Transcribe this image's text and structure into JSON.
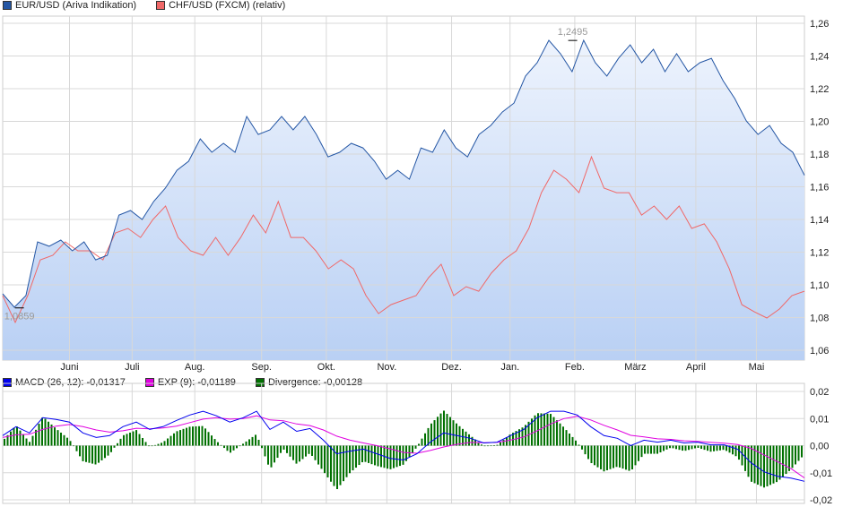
{
  "chart_data": [
    {
      "type": "line",
      "title": "",
      "legend_placement": "top-left",
      "legend": [
        {
          "label": "EUR/USD (Ariva Indikation)",
          "color": "#2456a4"
        },
        {
          "label": "CHF/USD (FXCM) (relativ)",
          "color": "#f06868"
        }
      ],
      "ylim": [
        1.055,
        1.265
      ],
      "y_ticks": [
        1.06,
        1.08,
        1.1,
        1.12,
        1.14,
        1.16,
        1.18,
        1.2,
        1.22,
        1.24,
        1.26
      ],
      "y_tick_labels": [
        "1,06",
        "1,08",
        "1,10",
        "1,12",
        "1,14",
        "1,16",
        "1,18",
        "1,20",
        "1,22",
        "1,24",
        "1,26"
      ],
      "x_span_days": 384,
      "x_ticks": [
        {
          "label": "Juni",
          "day": 32
        },
        {
          "label": "Juli",
          "day": 62
        },
        {
          "label": "Aug.",
          "day": 92
        },
        {
          "label": "Sep.",
          "day": 124
        },
        {
          "label": "Okt.",
          "day": 155
        },
        {
          "label": "Nov.",
          "day": 184
        },
        {
          "label": "Dez.",
          "day": 215
        },
        {
          "label": "Jan.",
          "day": 243
        },
        {
          "label": "Feb.",
          "day": 274
        },
        {
          "label": "März",
          "day": 303
        },
        {
          "label": "April",
          "day": 332
        },
        {
          "label": "Mai",
          "day": 361
        }
      ],
      "annotations": [
        {
          "label": "1,2495",
          "value": 1.2495,
          "day": 273
        },
        {
          "label": "1,0859",
          "value": 1.0859,
          "day": 8
        }
      ],
      "series": [
        {
          "name": "EUR/USD (Ariva Indikation)",
          "values": [
            1.0945,
            1.0863,
            1.0934,
            1.1263,
            1.1236,
            1.1274,
            1.1208,
            1.1263,
            1.1153,
            1.1181,
            1.1427,
            1.1455,
            1.14,
            1.151,
            1.1592,
            1.1701,
            1.1756,
            1.1893,
            1.1811,
            1.1866,
            1.1811,
            1.203,
            1.192,
            1.1948,
            1.203,
            1.1948,
            1.203,
            1.192,
            1.1783,
            1.1811,
            1.1866,
            1.1838,
            1.1756,
            1.1646,
            1.1701,
            1.1646,
            1.1838,
            1.1811,
            1.1948,
            1.1838,
            1.1783,
            1.192,
            1.1975,
            1.2057,
            1.2112,
            1.2277,
            1.2359,
            1.2496,
            1.2414,
            1.2304,
            1.2496,
            1.2359,
            1.2277,
            1.2386,
            1.2468,
            1.2359,
            1.2441,
            1.2304,
            1.2414,
            1.2304,
            1.2359,
            1.2386,
            1.2249,
            1.214,
            1.2003,
            1.192,
            1.1975,
            1.1866,
            1.1811,
            1.167
          ]
        },
        {
          "name": "CHF/USD (FXCM) (relativ)",
          "values": [
            1.0934,
            1.077,
            1.0934,
            1.1153,
            1.1181,
            1.1263,
            1.1208,
            1.1208,
            1.1153,
            1.1318,
            1.1345,
            1.129,
            1.14,
            1.1482,
            1.129,
            1.1208,
            1.1181,
            1.129,
            1.1181,
            1.129,
            1.1427,
            1.1318,
            1.151,
            1.129,
            1.129,
            1.1208,
            1.1098,
            1.1153,
            1.1098,
            1.0934,
            1.0824,
            1.0879,
            1.0907,
            1.0934,
            1.1044,
            1.1126,
            1.0934,
            1.0989,
            1.0961,
            1.1071,
            1.1153,
            1.1208,
            1.1345,
            1.1564,
            1.1701,
            1.1646,
            1.1564,
            1.1783,
            1.1592,
            1.1564,
            1.1564,
            1.1427,
            1.1482,
            1.14,
            1.1482,
            1.1345,
            1.1373,
            1.1263,
            1.1098,
            1.0879,
            1.0835,
            1.0797,
            1.0852,
            1.0934,
            1.0961
          ]
        }
      ]
    },
    {
      "type": "line",
      "title": "",
      "legend_placement": "top-left",
      "legend": [
        {
          "label": "MACD (26, 12): -0,01317",
          "color": "#0000ee"
        },
        {
          "label": "EXP (9): -0,01189",
          "color": "#e000e0"
        },
        {
          "label": "Divergence: -0,00128",
          "color": "#007000"
        }
      ],
      "ylim": [
        -0.023,
        0.023
      ],
      "y_ticks": [
        0.02,
        0.01,
        0.0,
        -0.01,
        -0.02
      ],
      "y_tick_labels": [
        "0,02",
        "0,01",
        "0,00",
        "-0,01",
        "-0,02"
      ],
      "series": [
        {
          "name": "MACD",
          "values": [
            0.0037,
            0.007,
            0.0047,
            0.0103,
            0.0097,
            0.0087,
            0.0047,
            0.003,
            0.0037,
            0.007,
            0.0087,
            0.006,
            0.007,
            0.0093,
            0.0113,
            0.0127,
            0.011,
            0.0087,
            0.0103,
            0.0127,
            0.006,
            0.0087,
            0.0053,
            0.0063,
            0.002,
            -0.003,
            -0.002,
            -0.0013,
            -0.003,
            -0.0047,
            -0.0053,
            -0.003,
            0.0013,
            0.0047,
            0.0037,
            0.0027,
            0.001,
            0.0013,
            0.0037,
            0.006,
            0.0103,
            0.0127,
            0.0127,
            0.0113,
            0.007,
            0.0037,
            0.0027,
            0.0,
            0.002,
            0.0013,
            0.002,
            0.001,
            0.0013,
            0.0003,
            0.0003,
            -0.0013,
            -0.0063,
            -0.0097,
            -0.0113,
            -0.012,
            -0.01317
          ]
        },
        {
          "name": "EXP",
          "values": [
            0.003,
            0.004,
            0.0042,
            0.006,
            0.0072,
            0.0078,
            0.007,
            0.0058,
            0.005,
            0.0055,
            0.0064,
            0.0062,
            0.0065,
            0.0072,
            0.0085,
            0.0098,
            0.0103,
            0.0098,
            0.01,
            0.011,
            0.0095,
            0.0092,
            0.008,
            0.0074,
            0.0058,
            0.0035,
            0.002,
            0.001,
            0.0,
            -0.0012,
            -0.0025,
            -0.0028,
            -0.0018,
            -0.0005,
            0.0005,
            0.0012,
            0.0011,
            0.0012,
            0.002,
            0.0032,
            0.0055,
            0.008,
            0.01,
            0.0108,
            0.0095,
            0.0075,
            0.0058,
            0.0038,
            0.0032,
            0.0025,
            0.0023,
            0.0018,
            0.0016,
            0.0012,
            0.0009,
            0.0004,
            -0.001,
            -0.0035,
            -0.006,
            -0.0085,
            -0.01189
          ]
        }
      ]
    }
  ]
}
